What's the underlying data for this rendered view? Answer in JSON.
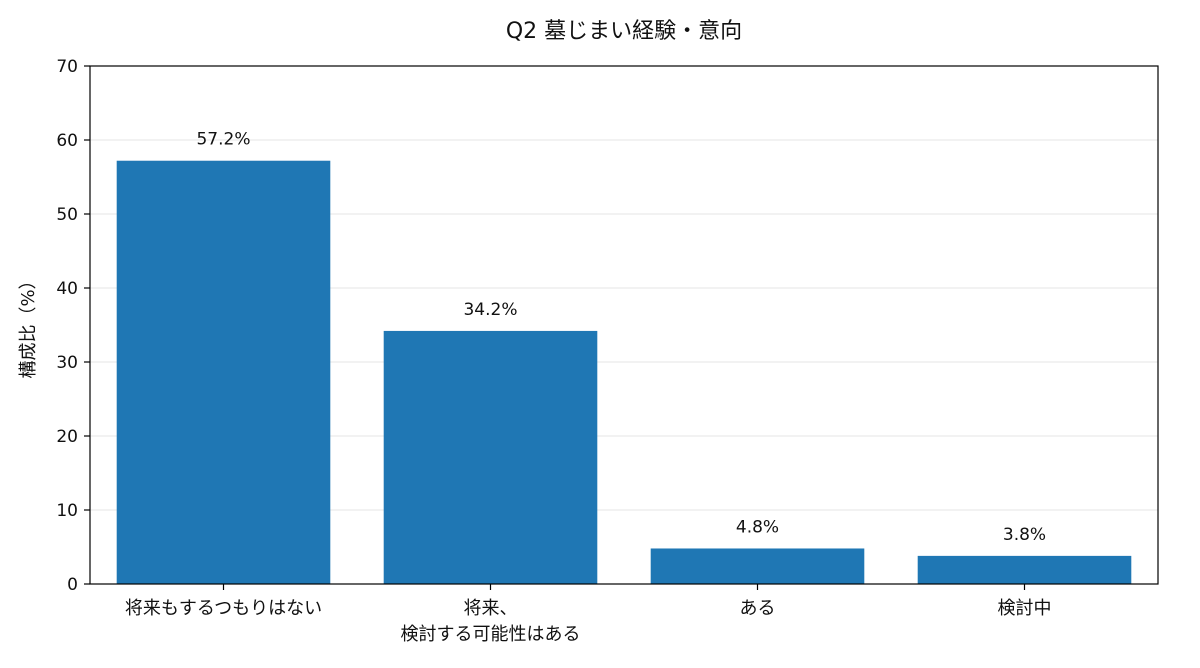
{
  "chart_data": {
    "type": "bar",
    "title": "Q2 墓じまい経験・意向",
    "xlabel": "",
    "ylabel": "構成比（%）",
    "ylim": [
      0,
      70
    ],
    "yticks": [
      0,
      10,
      20,
      30,
      40,
      50,
      60,
      70
    ],
    "grid": true,
    "bar_color": "#1f77b4",
    "categories": [
      [
        "将来もするつもりはない"
      ],
      [
        "将来、",
        "検討する可能性はある"
      ],
      [
        "ある"
      ],
      [
        "検討中"
      ]
    ],
    "values": [
      57.2,
      34.2,
      4.8,
      3.8
    ],
    "value_labels": [
      "57.2%",
      "34.2%",
      "4.8%",
      "3.8%"
    ]
  }
}
